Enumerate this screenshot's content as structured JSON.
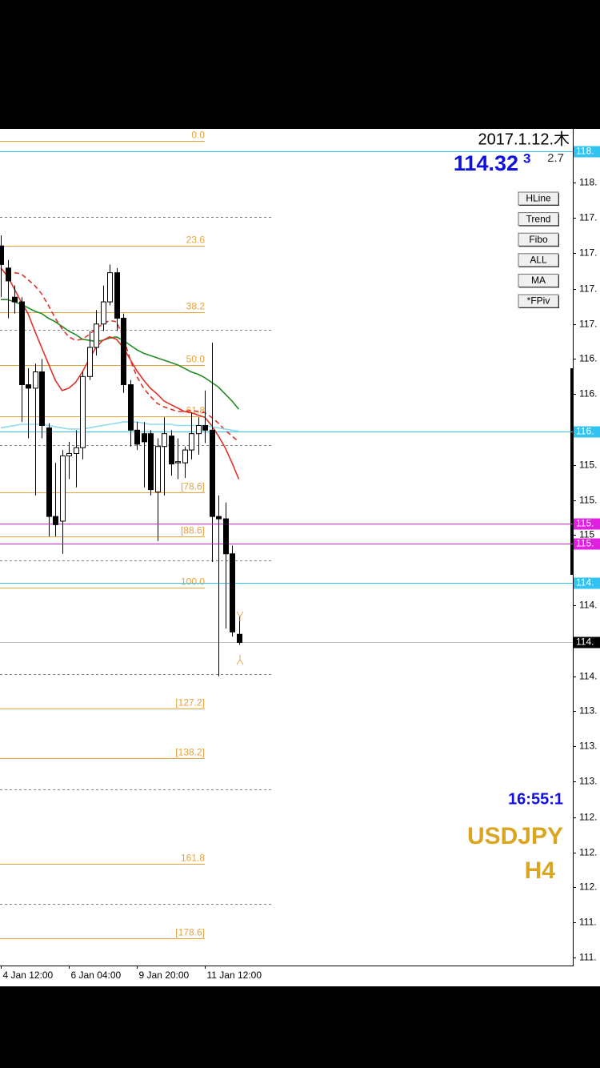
{
  "header": {
    "date": "2017.1.12.木",
    "bid": "114.32",
    "bid_superscript": "3",
    "spread": "2.7"
  },
  "buttons": [
    "HLine",
    "Trend",
    "Fibo",
    "ALL",
    "MA",
    "*FPiv"
  ],
  "clock": "16:55:1",
  "symbol": "USDJPY",
  "timeframe": "H4",
  "chart_data": {
    "type": "candlestick",
    "categories": [
      "4 Jan 12:00",
      null,
      null,
      null,
      null,
      null,
      null,
      null,
      null,
      null,
      "6 Jan 04:00",
      null,
      null,
      null,
      null,
      null,
      null,
      null,
      null,
      null,
      "9 Jan 20:00",
      null,
      null,
      null,
      null,
      null,
      null,
      null,
      null,
      null,
      "11 Jan 12:00",
      null,
      null,
      null,
      null,
      null
    ],
    "open": [
      117.72,
      117.53,
      117.28,
      117.24,
      116.53,
      116.5,
      116.64,
      116.16,
      115.4,
      115.36,
      115.92,
      115.94,
      115.99,
      116.6,
      116.85,
      117.05,
      117.24,
      117.49,
      117.1,
      116.53,
      116.14,
      116.11,
      116.11,
      115.61,
      116.0,
      116.09,
      115.86,
      115.86,
      115.97,
      116.11,
      116.18,
      116.14,
      115.4,
      115.38,
      115.08,
      114.39
    ],
    "high": [
      117.81,
      117.6,
      117.38,
      117.28,
      116.67,
      116.71,
      116.75,
      116.2,
      115.86,
      115.97,
      116.04,
      116.14,
      116.64,
      116.99,
      117.17,
      117.38,
      117.56,
      117.53,
      117.14,
      116.57,
      116.21,
      116.21,
      116.14,
      116.07,
      116.25,
      116.14,
      116.07,
      116.0,
      116.29,
      116.25,
      116.48,
      116.89,
      115.58,
      115.52,
      115.15,
      114.55
    ],
    "low": [
      117.28,
      117.1,
      117.14,
      116.21,
      116.07,
      115.58,
      116.07,
      115.23,
      115.23,
      115.08,
      115.72,
      115.65,
      115.89,
      116.57,
      116.78,
      116.99,
      117.21,
      116.99,
      116.46,
      116.0,
      115.97,
      115.65,
      115.58,
      115.19,
      115.58,
      115.75,
      115.72,
      115.73,
      115.89,
      115.93,
      116.03,
      115.01,
      114.03,
      114.44,
      114.37,
      114.3
    ],
    "close": [
      117.56,
      117.42,
      117.24,
      116.53,
      116.5,
      116.64,
      116.18,
      115.4,
      115.33,
      115.92,
      115.94,
      115.99,
      116.6,
      116.85,
      117.05,
      117.24,
      117.49,
      117.1,
      116.53,
      116.14,
      116.02,
      116.04,
      115.63,
      116.0,
      116.11,
      115.85,
      115.87,
      115.97,
      116.11,
      116.18,
      116.14,
      115.4,
      115.38,
      115.08,
      114.41,
      114.32
    ],
    "up_color": "#ffffff",
    "down_color": "#000000",
    "ylim": [
      111.55,
      118.73
    ],
    "yticks": [
      {
        "value": 118.26,
        "label": "118."
      },
      {
        "value": 117.96,
        "label": "117."
      },
      {
        "value": 117.66,
        "label": "117."
      },
      {
        "value": 117.35,
        "label": "117."
      },
      {
        "value": 117.05,
        "label": "117."
      },
      {
        "value": 116.75,
        "label": "116."
      },
      {
        "value": 116.45,
        "label": "116."
      },
      {
        "value": 115.84,
        "label": "115."
      },
      {
        "value": 115.54,
        "label": "115."
      },
      {
        "value": 115.24,
        "label": "115"
      },
      {
        "value": 114.64,
        "label": "114."
      },
      {
        "value": 114.03,
        "label": "114."
      },
      {
        "value": 113.73,
        "label": "113."
      },
      {
        "value": 113.43,
        "label": "113."
      },
      {
        "value": 113.13,
        "label": "113."
      },
      {
        "value": 112.82,
        "label": "112."
      },
      {
        "value": 112.52,
        "label": "112."
      },
      {
        "value": 112.22,
        "label": "112."
      },
      {
        "value": 111.92,
        "label": "111."
      },
      {
        "value": 111.62,
        "label": "111."
      }
    ],
    "moving_averages": [
      {
        "color": "#228b22",
        "dashed": false,
        "values": [
          117.26,
          117.26,
          117.24,
          117.22,
          117.19,
          117.16,
          117.14,
          117.1,
          117.07,
          117.03,
          116.99,
          116.96,
          116.92,
          116.91,
          116.9,
          116.91,
          116.93,
          116.94,
          116.91,
          116.87,
          116.83,
          116.8,
          116.78,
          116.76,
          116.74,
          116.72,
          116.7,
          116.67,
          116.64,
          116.62,
          116.59,
          116.55,
          116.51,
          116.45,
          116.39,
          116.32
        ]
      },
      {
        "color": "#e0302a",
        "dashed": false,
        "values": [
          117.53,
          117.46,
          117.35,
          117.24,
          117.14,
          116.99,
          116.85,
          116.71,
          116.57,
          116.48,
          116.5,
          116.55,
          116.64,
          116.75,
          116.85,
          116.91,
          116.94,
          116.92,
          116.85,
          116.75,
          116.65,
          116.57,
          116.5,
          116.45,
          116.39,
          116.36,
          116.33,
          116.3,
          116.29,
          116.27,
          116.25,
          116.18,
          116.09,
          115.99,
          115.86,
          115.72
        ]
      },
      {
        "color": "#e0302a",
        "dashed": true,
        "values": [
          null,
          null,
          117.49,
          117.48,
          117.43,
          117.38,
          117.31,
          117.21,
          117.1,
          117.01,
          116.94,
          116.91,
          116.92,
          116.96,
          117.01,
          117.05,
          117.08,
          117.07,
          116.94,
          116.75,
          116.6,
          116.5,
          116.43,
          116.37,
          116.34,
          116.32,
          116.3,
          116.3,
          116.31,
          116.3,
          116.29,
          116.25,
          116.2,
          116.14,
          116.09,
          116.04
        ]
      },
      {
        "color": "#8fdcec",
        "dashed": false,
        "values": [
          116.16,
          116.17,
          116.18,
          116.19,
          116.19,
          116.19,
          116.19,
          116.18,
          116.17,
          116.16,
          116.15,
          116.15,
          116.15,
          116.16,
          116.17,
          116.18,
          116.19,
          116.2,
          116.21,
          116.21,
          116.21,
          116.2,
          116.19,
          116.19,
          116.19,
          116.19,
          116.18,
          116.18,
          116.18,
          116.18,
          116.18,
          116.17,
          116.16,
          116.15,
          116.14,
          116.13
        ]
      }
    ],
    "fib_color": "#e6a23c",
    "fib_levels": [
      {
        "label": "0.0",
        "value": 118.62
      },
      {
        "label": "23.6",
        "value": 117.72
      },
      {
        "label": "38.2",
        "value": 117.15
      },
      {
        "label": "50.0",
        "value": 116.7
      },
      {
        "label": "61.8",
        "value": 116.26
      },
      {
        "label": "[78.6]",
        "value": 115.61
      },
      {
        "label": "[88.6]",
        "value": 115.23
      },
      {
        "label": "100.0",
        "value": 114.79
      },
      {
        "label": "[127.2]",
        "value": 113.75
      },
      {
        "label": "[138.2]",
        "value": 113.33
      },
      {
        "label": "161.8",
        "value": 112.42
      },
      {
        "label": "[178.6]",
        "value": 111.78
      }
    ],
    "level_color": "#808080",
    "levels": [
      117.97,
      117.0,
      116.01,
      115.02,
      114.05,
      113.06,
      112.08
    ],
    "price_lines": [
      {
        "value": 118.53,
        "label": "118.",
        "color": "#33c3f0"
      },
      {
        "value": 116.13,
        "label": "116.",
        "color": "#33c3f0"
      },
      {
        "value": 115.34,
        "label": "115.",
        "color": "#e020e0"
      },
      {
        "value": 115.17,
        "label": "115.",
        "color": "#e020e0"
      },
      {
        "value": 114.83,
        "label": "114.",
        "color": "#33c3f0"
      }
    ],
    "current_price": {
      "value": 114.32,
      "label": "114.",
      "color": "#000000",
      "line_color": "#c0c0c0"
    }
  }
}
